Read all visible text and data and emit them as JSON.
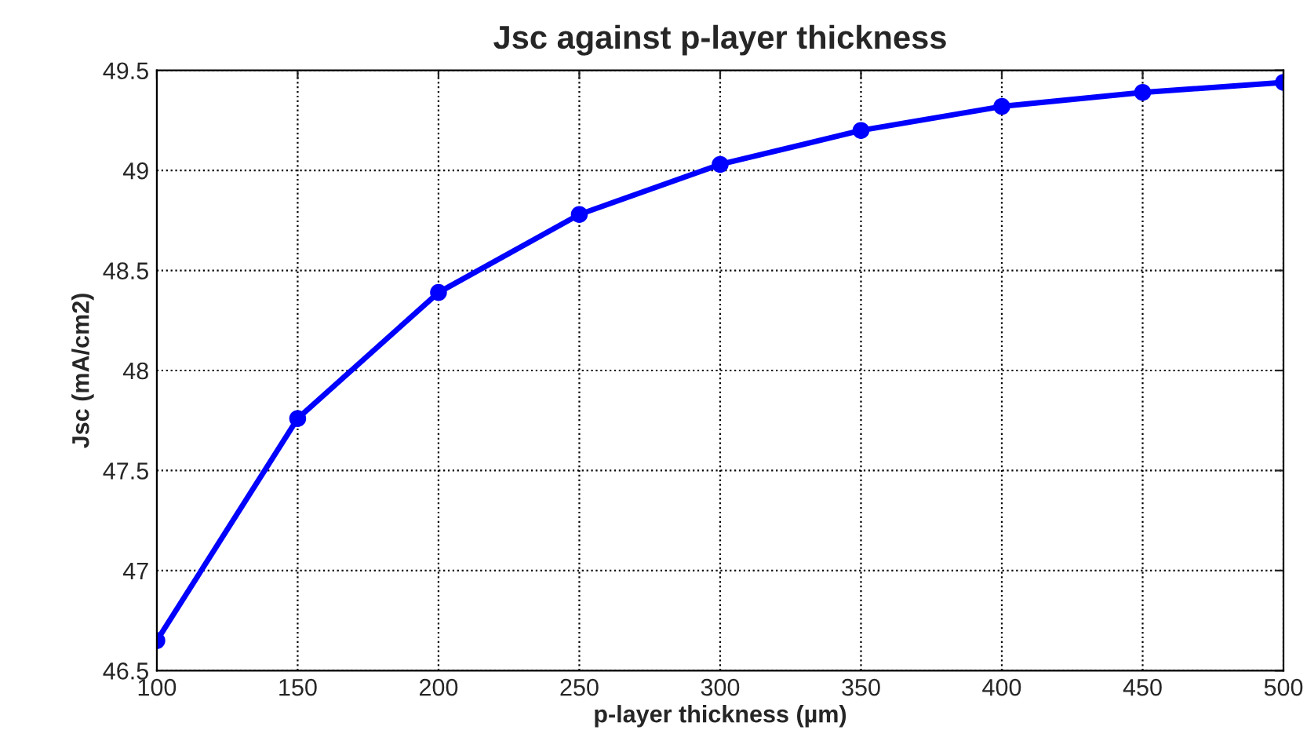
{
  "chart_data": {
    "type": "line",
    "title": "Jsc against p-layer thickness",
    "xlabel": "p-layer thickness (µm)",
    "ylabel": "Jsc (mA/cm2)",
    "x": [
      100,
      150,
      200,
      250,
      300,
      350,
      400,
      450,
      500
    ],
    "series": [
      {
        "color": "#0000ff",
        "values": [
          46.65,
          47.76,
          48.39,
          48.78,
          49.03,
          49.2,
          49.32,
          49.39,
          49.44
        ]
      }
    ],
    "xlim": [
      100,
      500
    ],
    "xticks": [
      100,
      150,
      200,
      250,
      300,
      350,
      400,
      450,
      500
    ],
    "ylim": [
      46.5,
      49.5
    ],
    "yticks": [
      46.5,
      47,
      47.5,
      48,
      48.5,
      49,
      49.5
    ],
    "grid": true,
    "marker": "circle",
    "line_style": "solid"
  }
}
